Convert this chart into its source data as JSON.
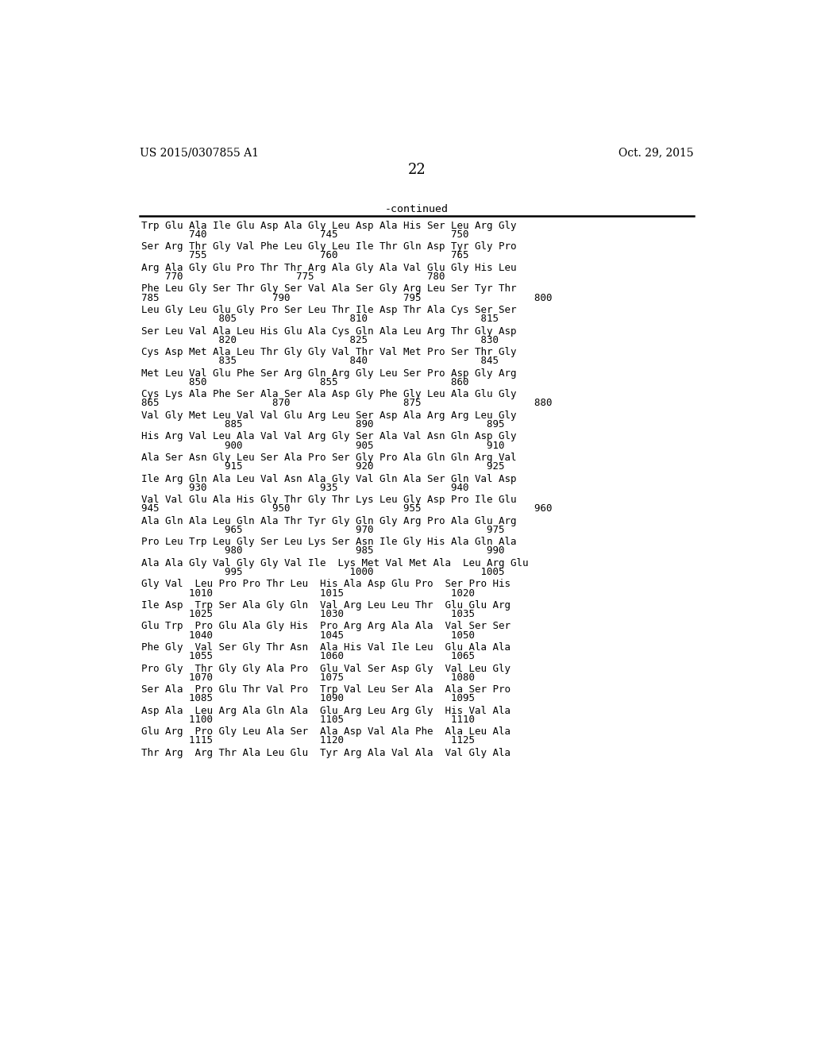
{
  "header_left": "US 2015/0307855 A1",
  "header_right": "Oct. 29, 2015",
  "page_number": "22",
  "continued_label": "-continued",
  "bg_color": "#ffffff",
  "text_color": "#000000",
  "sequence_blocks": [
    [
      "Trp Glu Ala Ile Glu Asp Ala Gly Leu Asp Ala His Ser Leu Arg Gly",
      "        740                   745                   750"
    ],
    [
      "Ser Arg Thr Gly Val Phe Leu Gly Leu Ile Thr Gln Asp Tyr Gly Pro",
      "        755                   760                   765"
    ],
    [
      "Arg Ala Gly Glu Pro Thr Thr Arg Ala Gly Ala Val Glu Gly His Leu",
      "    770                   775                   780"
    ],
    [
      "Phe Leu Gly Ser Thr Gly Ser Val Ala Ser Gly Arg Leu Ser Tyr Thr",
      "785                   790                   795                   800"
    ],
    [
      "Leu Gly Leu Glu Gly Pro Ser Leu Thr Ile Asp Thr Ala Cys Ser Ser",
      "             805                   810                   815"
    ],
    [
      "Ser Leu Val Ala Leu His Glu Ala Cys Gln Ala Leu Arg Thr Gly Asp",
      "             820                   825                   830"
    ],
    [
      "Cys Asp Met Ala Leu Thr Gly Gly Val Thr Val Met Pro Ser Thr Gly",
      "             835                   840                   845"
    ],
    [
      "Met Leu Val Glu Phe Ser Arg Gln Arg Gly Leu Ser Pro Asp Gly Arg",
      "        850                   855                   860"
    ],
    [
      "Cys Lys Ala Phe Ser Ala Ser Ala Asp Gly Phe Gly Leu Ala Glu Gly",
      "865                   870                   875                   880"
    ],
    [
      "Val Gly Met Leu Val Val Glu Arg Leu Ser Asp Ala Arg Arg Leu Gly",
      "              885                   890                   895"
    ],
    [
      "His Arg Val Leu Ala Val Val Arg Gly Ser Ala Val Asn Gln Asp Gly",
      "              900                   905                   910"
    ],
    [
      "Ala Ser Asn Gly Leu Ser Ala Pro Ser Gly Pro Ala Gln Gln Arg Val",
      "              915                   920                   925"
    ],
    [
      "Ile Arg Gln Ala Leu Val Asn Ala Gly Val Gln Ala Ser Gln Val Asp",
      "        930                   935                   940"
    ],
    [
      "Val Val Glu Ala His Gly Thr Gly Thr Lys Leu Gly Asp Pro Ile Glu",
      "945                   950                   955                   960"
    ],
    [
      "Ala Gln Ala Leu Gln Ala Thr Tyr Gly Gln Gly Arg Pro Ala Glu Arg",
      "              965                   970                   975"
    ],
    [
      "Pro Leu Trp Leu Gly Ser Leu Lys Ser Asn Ile Gly His Ala Gln Ala",
      "              980                   985                   990"
    ],
    [
      "Ala Ala Gly Val Gly Gly Val Ile  Lys Met Val Met Ala  Leu Arg Glu",
      "              995                  1000                  1005"
    ],
    [
      "Gly Val  Leu Pro Pro Thr Leu  His Ala Asp Glu Pro  Ser Pro His",
      "        1010                  1015                  1020"
    ],
    [
      "Ile Asp  Trp Ser Ala Gly Gln  Val Arg Leu Leu Thr  Glu Glu Arg",
      "        1025                  1030                  1035"
    ],
    [
      "Glu Trp  Pro Glu Ala Gly His  Pro Arg Arg Ala Ala  Val Ser Ser",
      "        1040                  1045                  1050"
    ],
    [
      "Phe Gly  Val Ser Gly Thr Asn  Ala His Val Ile Leu  Glu Ala Ala",
      "        1055                  1060                  1065"
    ],
    [
      "Pro Gly  Thr Gly Gly Ala Pro  Glu Val Ser Asp Gly  Val Leu Gly",
      "        1070                  1075                  1080"
    ],
    [
      "Ser Ala  Pro Glu Thr Val Pro  Trp Val Leu Ser Ala  Ala Ser Pro",
      "        1085                  1090                  1095"
    ],
    [
      "Asp Ala  Leu Arg Ala Gln Ala  Glu Arg Leu Arg Gly  His Val Ala",
      "        1100                  1105                  1110"
    ],
    [
      "Glu Arg  Pro Gly Leu Ala Ser  Ala Asp Val Ala Phe  Ala Leu Ala",
      "        1115                  1120                  1125"
    ],
    [
      "Thr Arg  Arg Thr Ala Leu Glu  Tyr Arg Ala Val Ala  Val Gly Ala",
      ""
    ]
  ]
}
